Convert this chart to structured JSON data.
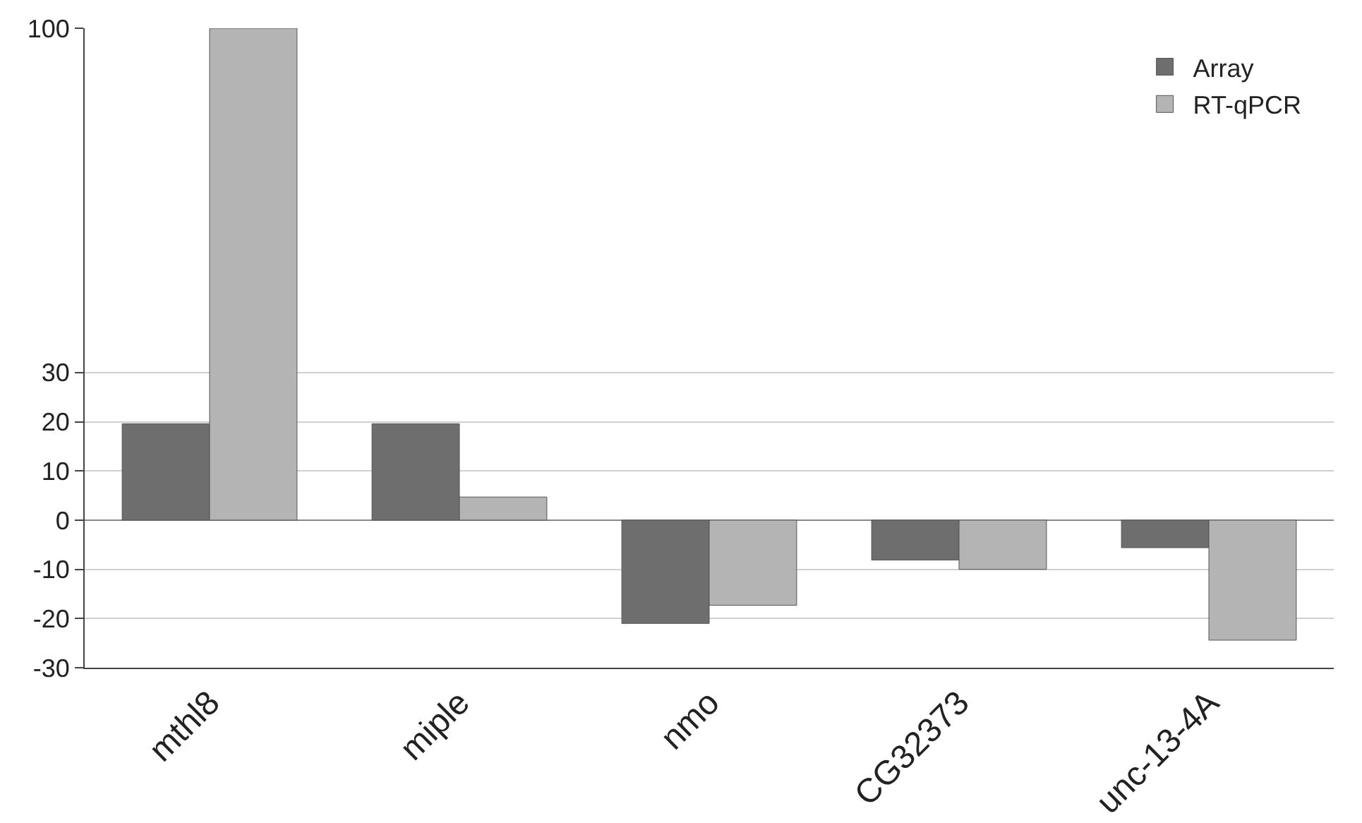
{
  "chart_data": {
    "type": "bar",
    "categories": [
      "mthl8",
      "miple",
      "nmo",
      "CG32373",
      "unc-13-4A"
    ],
    "series": [
      {
        "name": "Array",
        "color": "#6e6e6e",
        "values": [
          19.6,
          19.6,
          -21,
          -8.1,
          -5.6
        ]
      },
      {
        "name": "RT-qPCR",
        "color": "#b4b4b4",
        "values": [
          100,
          4.7,
          -17.3,
          -10,
          -24.4
        ]
      }
    ],
    "ylim": [
      -30,
      100
    ],
    "yticks": [
      -30,
      -20,
      -10,
      0,
      10,
      20,
      30,
      100
    ],
    "grid": "y",
    "legend": "top right"
  }
}
